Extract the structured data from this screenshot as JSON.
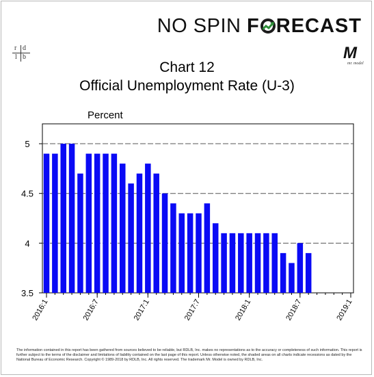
{
  "brand": {
    "name_part1": "NO SPIN ",
    "name_f": "F",
    "name_rest": "RECAST"
  },
  "logo_rdlb": {
    "r": "r",
    "d": "d",
    "l": "l",
    "b": "b"
  },
  "logo_mr": {
    "mark": "M",
    "sub": "mr. model"
  },
  "title_line1": "Chart 12",
  "title_line2": "Official Unemployment Rate (U-3)",
  "footer": "The information contained in this report has been gathered from sources believed to be reliable, but RDLB, Inc. makes no representations as to the accuracy or completeness of such information. This report is further subject to the terms of the disclaimer and limitations of liability contained on the last page of this report. Unless otherwise noted, the shaded areas on all charts indicate recessions as dated by the National Bureau of Economic Research. Copyright © 1989-2018 by RDLB, Inc. All rights reserved. The trademark Mr. Model is owned by RDLB, Inc.",
  "colors": {
    "bar": "#0a0af5",
    "brand_arrow": "#2f8f3a",
    "plot_background": "#ffffff"
  },
  "chart_data": {
    "type": "bar",
    "ylabel": "Percent",
    "ylim": [
      3.5,
      5.2
    ],
    "yticks": [
      3.5,
      4,
      4.5,
      5
    ],
    "ytick_labels": [
      "3.5",
      "4",
      "4.5",
      "5"
    ],
    "xtick_labels": [
      "2016:1",
      "2016:7",
      "2017:1",
      "2017:7",
      "2018:1",
      "2018:7",
      "2019:1"
    ],
    "grid": true,
    "categories": [
      "2016:1",
      "2016:2",
      "2016:3",
      "2016:4",
      "2016:5",
      "2016:6",
      "2016:7",
      "2016:8",
      "2016:9",
      "2016:10",
      "2016:11",
      "2016:12",
      "2017:1",
      "2017:2",
      "2017:3",
      "2017:4",
      "2017:5",
      "2017:6",
      "2017:7",
      "2017:8",
      "2017:9",
      "2017:10",
      "2017:11",
      "2017:12",
      "2018:1",
      "2018:2",
      "2018:3",
      "2018:4",
      "2018:5",
      "2018:6",
      "2018:7",
      "2018:8",
      "2018:9",
      "2018:10",
      "2018:11",
      "2018:12",
      "2019:1"
    ],
    "values": [
      4.9,
      4.9,
      5.0,
      5.0,
      4.7,
      4.9,
      4.9,
      4.9,
      4.9,
      4.8,
      4.6,
      4.7,
      4.8,
      4.7,
      4.5,
      4.4,
      4.3,
      4.3,
      4.3,
      4.4,
      4.2,
      4.1,
      4.1,
      4.1,
      4.1,
      4.1,
      4.1,
      4.1,
      3.9,
      3.8,
      4.0,
      3.9,
      null,
      null,
      null,
      null,
      null
    ]
  }
}
